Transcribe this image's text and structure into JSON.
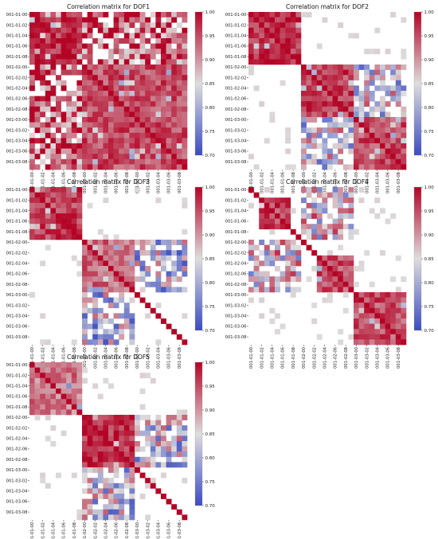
{
  "colorbar": {
    "min": 0.7,
    "max": 1.0,
    "ticks": [
      "1.00",
      "0.95",
      "0.90",
      "0.85",
      "0.80",
      "0.75",
      "0.70"
    ],
    "colormap": "coolwarm",
    "low_color": "#3b4cc0",
    "mid_color": "#dddddd",
    "high_color": "#b40426"
  },
  "chart_data": [
    {
      "type": "heatmap",
      "title": "Correlation matrix for DOF1",
      "y_tick_labels": [
        "001-01-00",
        "001-01-02",
        "001-01-04",
        "001-01-06",
        "001-01-08",
        "001-02-00",
        "001-02-02",
        "001-02-04",
        "001-02-06",
        "001-02-08",
        "001-03-00",
        "001-03-02",
        "001-03-04",
        "001-03-06",
        "001-03-08"
      ],
      "x_tick_labels": [
        "001-01-00",
        "001-01-02",
        "001-01-04",
        "001-01-06",
        "001-01-08",
        "001-02-00",
        "001-02-02",
        "001-02-04",
        "001-02-06",
        "001-02-08",
        "001-03-00",
        "001-03-02",
        "001-03-04",
        "001-03-06",
        "001-03-08"
      ],
      "blocks": [
        {
          "start": 0,
          "end": 10,
          "value": 0.97
        },
        {
          "start": 10,
          "end": 30,
          "value": 0.95
        }
      ],
      "off_block_value": 0.95,
      "off_block_links": [
        [
          10,
          30,
          0,
          10
        ]
      ],
      "zlim": [
        0.7,
        1.0
      ]
    },
    {
      "type": "heatmap",
      "title": "Correlation matrix for DOF2",
      "y_tick_labels": [
        "001-01-00",
        "001-01-02",
        "001-01-04",
        "001-01-06",
        "001-01-08",
        "001-02-00",
        "001-02-02",
        "001-02-04",
        "001-02-06",
        "001-02-08",
        "001-03-00",
        "001-03-02",
        "001-03-04",
        "001-03-06",
        "001-03-08"
      ],
      "x_tick_labels": [
        "001-01-00",
        "001-01-02",
        "001-01-04",
        "001-01-06",
        "001-01-08",
        "001-02-00",
        "001-02-02",
        "001-02-04",
        "001-02-06",
        "001-02-08",
        "001-03-00",
        "001-03-02",
        "001-03-04",
        "001-03-06",
        "001-03-08"
      ],
      "blocks": [
        {
          "start": 0,
          "end": 10,
          "value": 0.97
        },
        {
          "start": 10,
          "end": 20,
          "value": 0.96
        },
        {
          "start": 20,
          "end": 30,
          "value": 0.95
        }
      ],
      "off_block_value": 0.84,
      "off_block_links": [
        [
          20,
          30,
          10,
          20
        ]
      ],
      "zlim": [
        0.7,
        1.0
      ]
    },
    {
      "type": "heatmap",
      "title": "Correlation matrix for DOF3",
      "y_tick_labels": [
        "001-01-00",
        "001-01-02",
        "001-01-04",
        "001-01-06",
        "001-01-08",
        "001-02-00",
        "001-02-02",
        "001-02-04",
        "001-02-06",
        "001-02-08",
        "001-03-00",
        "001-03-02",
        "001-03-04",
        "001-03-06",
        "001-03-08"
      ],
      "x_tick_labels": [
        "001-01-00",
        "001-01-02",
        "001-01-04",
        "001-01-06",
        "001-01-08",
        "001-02-00",
        "001-02-02",
        "001-02-04",
        "001-02-06",
        "001-02-08",
        "001-03-00",
        "001-03-02",
        "001-03-04",
        "001-03-06",
        "001-03-08"
      ],
      "blocks": [
        {
          "start": 0,
          "end": 10,
          "value": 0.96
        },
        {
          "start": 10,
          "end": 20,
          "value": 0.93
        }
      ],
      "off_block_value": 0.82,
      "off_block_links": [
        [
          20,
          30,
          10,
          20
        ]
      ],
      "zlim": [
        0.7,
        1.0
      ]
    },
    {
      "type": "heatmap",
      "title": "Correlation matrix for DOF4",
      "y_tick_labels": [
        "001-01-00",
        "001-01-02",
        "001-01-04",
        "001-01-06",
        "001-01-08",
        "001-02-00",
        "001-02-02",
        "001-02-04",
        "001-02-06",
        "001-02-08",
        "001-03-00",
        "001-03-02",
        "001-03-04",
        "001-03-06",
        "001-03-08"
      ],
      "x_tick_labels": [
        "001-01-00",
        "001-01-02",
        "001-01-04",
        "001-01-06",
        "001-01-08",
        "001-02-00",
        "001-02-02",
        "001-02-04",
        "001-02-06",
        "001-02-08",
        "001-03-00",
        "001-03-02",
        "001-03-04",
        "001-03-06",
        "001-03-08"
      ],
      "blocks": [
        {
          "start": 2,
          "end": 8,
          "value": 0.96
        },
        {
          "start": 13,
          "end": 20,
          "value": 0.95
        },
        {
          "start": 20,
          "end": 30,
          "value": 0.95
        }
      ],
      "off_block_value": 0.86,
      "off_block_links": [
        [
          10,
          20,
          0,
          10
        ]
      ],
      "zlim": [
        0.7,
        1.0
      ]
    },
    {
      "type": "heatmap",
      "title": "Correlation matrix for DOF5",
      "y_tick_labels": [
        "001-01-00",
        "001-01-02",
        "001-01-04",
        "001-01-06",
        "001-01-08",
        "001-02-00",
        "001-02-02",
        "001-02-04",
        "001-02-06",
        "001-02-08",
        "001-03-00",
        "001-03-02",
        "001-03-04",
        "001-03-06",
        "001-03-08"
      ],
      "x_tick_labels": [
        "001-01-00",
        "001-01-02",
        "001-01-04",
        "001-01-06",
        "001-01-08",
        "001-02-00",
        "001-02-02",
        "001-02-04",
        "001-02-06",
        "001-02-08",
        "001-03-00",
        "001-03-02",
        "001-03-04",
        "001-03-06",
        "001-03-08"
      ],
      "blocks": [
        {
          "start": 0,
          "end": 10,
          "value": 0.92
        },
        {
          "start": 10,
          "end": 20,
          "value": 0.97
        }
      ],
      "off_block_value": 0.83,
      "off_block_links": [
        [
          20,
          30,
          10,
          20
        ]
      ],
      "zlim": [
        0.7,
        1.0
      ]
    }
  ]
}
